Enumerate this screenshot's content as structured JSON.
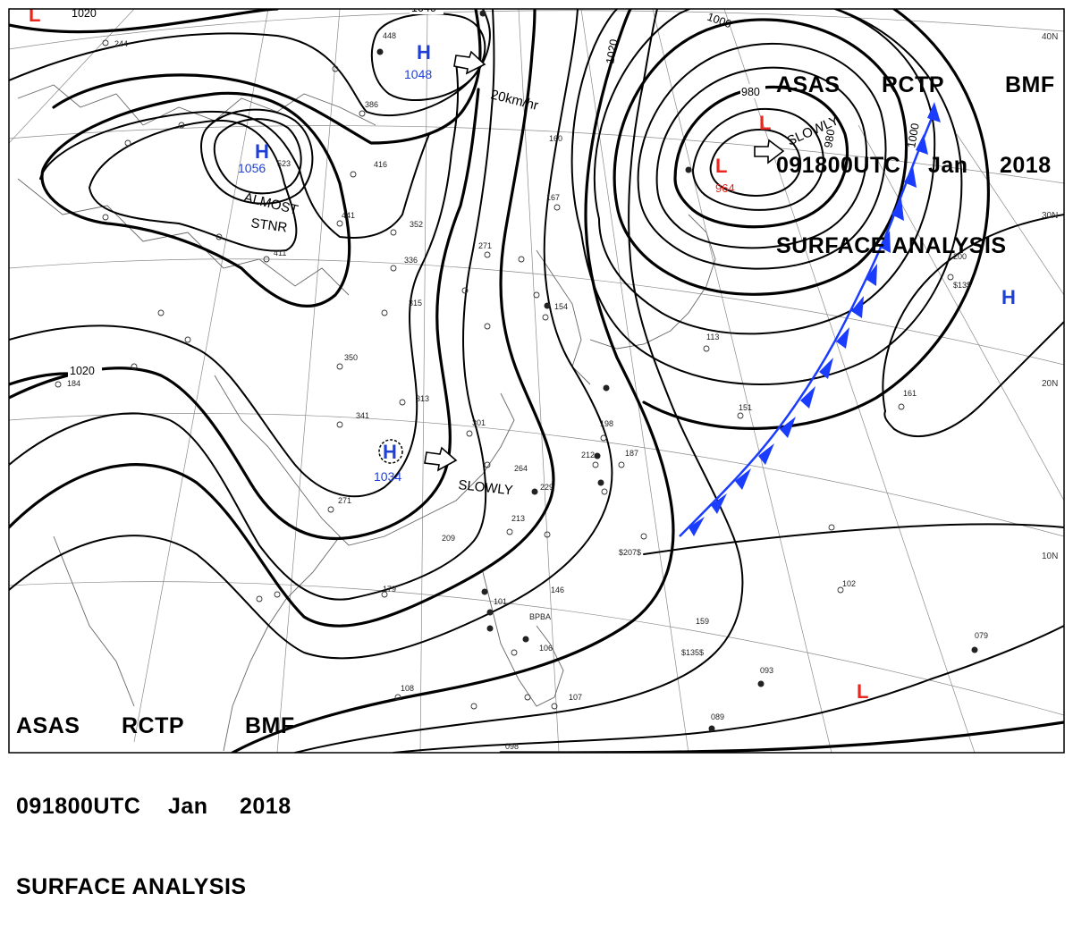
{
  "header": {
    "line1": [
      "ASAS",
      "RCTP",
      "BMF"
    ],
    "line2": [
      "091800UTC",
      "Jan",
      "2018"
    ],
    "line3": "SURFACE ANALYSIS"
  },
  "colors": {
    "high": "#1f3fd6",
    "low": "#e8281e",
    "front": "#1a3cff",
    "isobar": "#000000"
  },
  "pressure_centers": [
    {
      "type": "H",
      "value": "1048"
    },
    {
      "type": "H",
      "value": "1056"
    },
    {
      "type": "H",
      "value": "1034"
    },
    {
      "type": "L",
      "value": "964"
    },
    {
      "type": "L",
      "value": ""
    },
    {
      "type": "L",
      "value": ""
    },
    {
      "type": "L",
      "value": ""
    },
    {
      "type": "H",
      "value": ""
    }
  ],
  "isobar_labels": [
    "1020",
    "1040",
    "1020",
    "1000",
    "980",
    "980",
    "1000",
    "1020"
  ],
  "movement_labels": [
    "20km/hr",
    "SLOWLY",
    "ALMOST",
    "STNR",
    "SLOWLY"
  ],
  "latitude_labels": [
    "40N",
    "30N",
    "20N",
    "10N"
  ],
  "station_samples": [
    "244",
    "448",
    "386",
    "523",
    "416",
    "441",
    "352",
    "336",
    "315",
    "350",
    "313",
    "341",
    "301",
    "271",
    "264",
    "229",
    "213",
    "212",
    "198",
    "187",
    "167",
    "160",
    "154",
    "151",
    "113",
    "161",
    "200",
    "184",
    "209",
    "179",
    "146",
    "101",
    "106",
    "108",
    "107",
    "098",
    "093",
    "089",
    "079",
    "102",
    "159",
    "271",
    "411",
    "BPBA",
    "$207$",
    "$135$",
    "$13$"
  ]
}
